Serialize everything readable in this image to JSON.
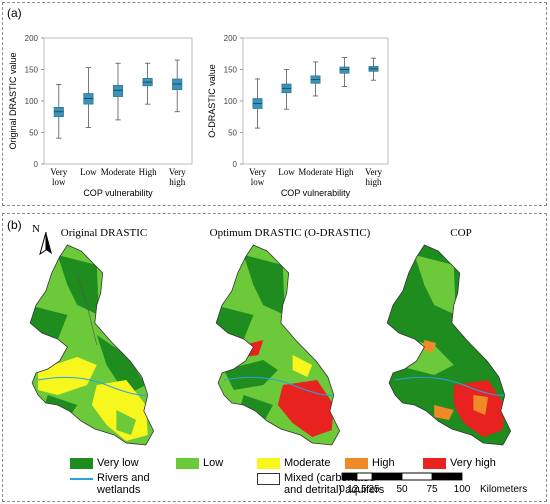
{
  "panel_a": {
    "label": "(a)"
  },
  "panel_b": {
    "label": "(b)"
  },
  "chart_data": [
    {
      "type": "boxplot",
      "ylabel": "Original DRASTIC value",
      "xlabel": "COP vulnerability",
      "ylim": [
        0,
        200
      ],
      "yticks": [
        "0",
        "50",
        "100",
        "150",
        "200"
      ],
      "categories": [
        [
          "Very",
          "low"
        ],
        [
          "Low"
        ],
        [
          "Moderate"
        ],
        [
          "High"
        ],
        [
          "Very",
          "high"
        ]
      ],
      "boxes": [
        {
          "min": 41,
          "q1": 75,
          "median": 83,
          "q3": 90,
          "max": 126
        },
        {
          "min": 58,
          "q1": 95,
          "median": 104,
          "q3": 112,
          "max": 153
        },
        {
          "min": 70,
          "q1": 107,
          "median": 117,
          "q3": 125,
          "max": 160
        },
        {
          "min": 95,
          "q1": 124,
          "median": 130,
          "q3": 136,
          "max": 160
        },
        {
          "min": 83,
          "q1": 118,
          "median": 127,
          "q3": 135,
          "max": 165
        }
      ]
    },
    {
      "type": "boxplot",
      "ylabel": "O-DRASTIC value",
      "xlabel": "COP vulnerability",
      "ylim": [
        0,
        200
      ],
      "yticks": [
        "0",
        "50",
        "100",
        "150",
        "200"
      ],
      "categories": [
        [
          "Very",
          "low"
        ],
        [
          "Low"
        ],
        [
          "Moderate"
        ],
        [
          "High"
        ],
        [
          "Very",
          "high"
        ]
      ],
      "boxes": [
        {
          "min": 57,
          "q1": 88,
          "median": 96,
          "q3": 104,
          "max": 135
        },
        {
          "min": 87,
          "q1": 113,
          "median": 120,
          "q3": 127,
          "max": 150
        },
        {
          "min": 108,
          "q1": 128,
          "median": 134,
          "q3": 140,
          "max": 162
        },
        {
          "min": 123,
          "q1": 144,
          "median": 150,
          "q3": 154,
          "max": 169
        },
        {
          "min": 133,
          "q1": 147,
          "median": 151,
          "q3": 155,
          "max": 168
        }
      ]
    }
  ],
  "maps": {
    "north": "N",
    "titles": [
      "Original DRASTIC",
      "Optimum DRASTIC (O-DRASTIC)",
      "COP"
    ]
  },
  "legend": {
    "items": [
      {
        "label": "Very low",
        "color": "#1e8c1e"
      },
      {
        "label": "Low",
        "color": "#6cc93a"
      },
      {
        "label": "Moderate",
        "color": "#f7f71e"
      },
      {
        "label": "High",
        "color": "#f08a28"
      },
      {
        "label": "Very high",
        "color": "#e8221e"
      }
    ],
    "rivers": "Rivers and\nwetlands",
    "rivers_color": "#2aa0e6",
    "mixed": "Mixed (carbonated\nand detrital) aquifers",
    "scale_ticks": [
      "0",
      "12.5",
      "25",
      "50",
      "75",
      "100"
    ],
    "scale_unit": "Kilometers"
  }
}
